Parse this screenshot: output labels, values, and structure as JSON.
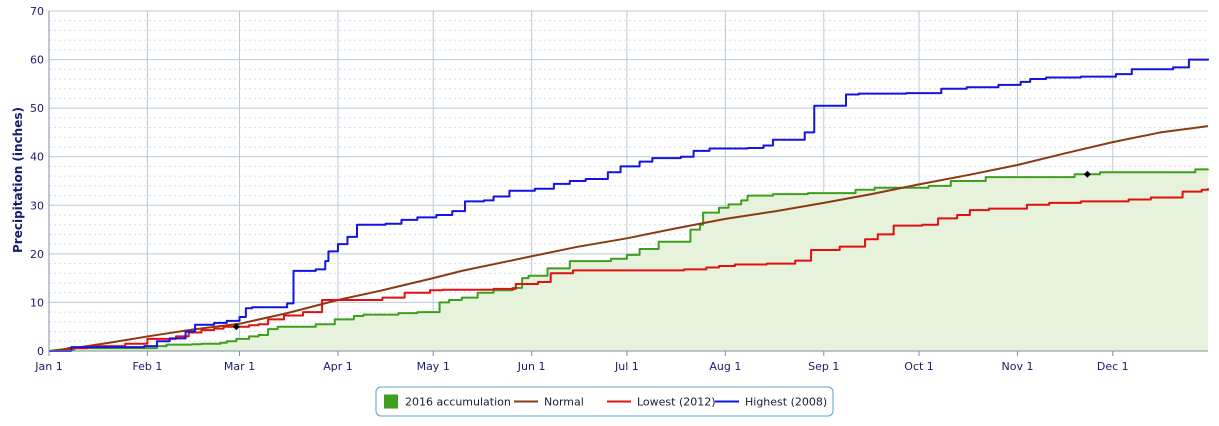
{
  "chart_data": {
    "type": "line",
    "title": "",
    "xlabel": "",
    "ylabel": "Precipitation (inches)",
    "ylim": [
      0,
      70
    ],
    "yticks": [
      0,
      10,
      20,
      30,
      40,
      50,
      60,
      70
    ],
    "xlim_day": [
      0,
      365
    ],
    "month_ticks": [
      {
        "label": "Jan 1",
        "day": 0
      },
      {
        "label": "Feb 1",
        "day": 31
      },
      {
        "label": "Mar 1",
        "day": 60
      },
      {
        "label": "Apr 1",
        "day": 91
      },
      {
        "label": "May 1",
        "day": 121
      },
      {
        "label": "Jun 1",
        "day": 152
      },
      {
        "label": "Jul 1",
        "day": 182
      },
      {
        "label": "Aug 1",
        "day": 213
      },
      {
        "label": "Sep 1",
        "day": 244
      },
      {
        "label": "Oct 1",
        "day": 274
      },
      {
        "label": "Nov 1",
        "day": 305
      },
      {
        "label": "Dec 1",
        "day": 335
      }
    ],
    "grid": true,
    "legend_position": "bottom-center",
    "series": [
      {
        "name": "2016 accumulation",
        "style": "filled-step",
        "color": "#3e9e1e",
        "fill": "#e6f2dc",
        "points": [
          [
            0,
            0
          ],
          [
            5,
            0.3
          ],
          [
            8,
            0.6
          ],
          [
            34,
            1.0
          ],
          [
            37,
            1.3
          ],
          [
            45,
            1.4
          ],
          [
            48,
            1.5
          ],
          [
            54,
            1.7
          ],
          [
            56,
            2.0
          ],
          [
            59,
            2.5
          ],
          [
            63,
            3.0
          ],
          [
            66,
            3.3
          ],
          [
            69,
            4.5
          ],
          [
            72,
            5.0
          ],
          [
            84,
            5.5
          ],
          [
            90,
            6.5
          ],
          [
            96,
            7.2
          ],
          [
            99,
            7.5
          ],
          [
            110,
            7.8
          ],
          [
            116,
            8.0
          ],
          [
            120,
            8.0
          ],
          [
            123,
            10.0
          ],
          [
            126,
            10.5
          ],
          [
            130,
            11.0
          ],
          [
            135,
            12.0
          ],
          [
            140,
            12.5
          ],
          [
            146,
            13.0
          ],
          [
            149,
            15.0
          ],
          [
            151,
            15.5
          ],
          [
            157,
            17.0
          ],
          [
            164,
            18.5
          ],
          [
            177,
            19.0
          ],
          [
            182,
            19.8
          ],
          [
            186,
            21.0
          ],
          [
            192,
            22.5
          ],
          [
            202,
            25.0
          ],
          [
            205,
            26.0
          ],
          [
            206,
            28.5
          ],
          [
            211,
            29.5
          ],
          [
            214,
            30.2
          ],
          [
            218,
            31.0
          ],
          [
            220,
            32.0
          ],
          [
            228,
            32.3
          ],
          [
            239,
            32.5
          ],
          [
            254,
            33.2
          ],
          [
            260,
            33.6
          ],
          [
            277,
            34.0
          ],
          [
            284,
            35.0
          ],
          [
            295,
            35.8
          ],
          [
            323,
            36.4
          ],
          [
            331,
            36.8
          ],
          [
            361,
            37.4
          ],
          [
            365,
            37.5
          ]
        ],
        "markers": [
          [
            327,
            36.4
          ]
        ]
      },
      {
        "name": "Normal",
        "style": "line",
        "color": "#8b3a12",
        "points": [
          [
            0,
            0
          ],
          [
            10,
            0.8
          ],
          [
            20,
            1.8
          ],
          [
            31,
            3.0
          ],
          [
            45,
            4.4
          ],
          [
            60,
            5.6
          ],
          [
            75,
            7.8
          ],
          [
            91,
            10.5
          ],
          [
            105,
            12.5
          ],
          [
            121,
            15.0
          ],
          [
            130,
            16.5
          ],
          [
            152,
            19.5
          ],
          [
            166,
            21.4
          ],
          [
            182,
            23.2
          ],
          [
            197,
            25.2
          ],
          [
            213,
            27.2
          ],
          [
            229,
            28.8
          ],
          [
            244,
            30.5
          ],
          [
            259,
            32.3
          ],
          [
            274,
            34.3
          ],
          [
            290,
            36.3
          ],
          [
            305,
            38.3
          ],
          [
            320,
            40.7
          ],
          [
            335,
            43.0
          ],
          [
            350,
            45.0
          ],
          [
            365,
            46.3
          ]
        ]
      },
      {
        "name": "Lowest (2012)",
        "style": "step",
        "color": "#e01010",
        "points": [
          [
            0,
            0
          ],
          [
            6,
            0.6
          ],
          [
            12,
            1.0
          ],
          [
            24,
            1.5
          ],
          [
            31,
            2.5
          ],
          [
            40,
            3.0
          ],
          [
            44,
            3.8
          ],
          [
            48,
            4.3
          ],
          [
            52,
            4.6
          ],
          [
            55,
            5.0
          ],
          [
            63,
            5.3
          ],
          [
            66,
            5.5
          ],
          [
            69,
            6.5
          ],
          [
            74,
            7.3
          ],
          [
            80,
            8.0
          ],
          [
            86,
            10.5
          ],
          [
            100,
            10.5
          ],
          [
            105,
            11.0
          ],
          [
            112,
            12.0
          ],
          [
            120,
            12.5
          ],
          [
            124,
            12.6
          ],
          [
            140,
            12.8
          ],
          [
            147,
            13.8
          ],
          [
            154,
            14.2
          ],
          [
            158,
            16.0
          ],
          [
            165,
            16.6
          ],
          [
            200,
            16.8
          ],
          [
            207,
            17.2
          ],
          [
            211,
            17.5
          ],
          [
            216,
            17.8
          ],
          [
            226,
            18.0
          ],
          [
            235,
            18.6
          ],
          [
            240,
            20.8
          ],
          [
            249,
            21.5
          ],
          [
            257,
            23.0
          ],
          [
            261,
            24.0
          ],
          [
            266,
            25.8
          ],
          [
            275,
            26.0
          ],
          [
            280,
            27.3
          ],
          [
            286,
            28.0
          ],
          [
            290,
            29.0
          ],
          [
            296,
            29.3
          ],
          [
            308,
            30.1
          ],
          [
            315,
            30.5
          ],
          [
            325,
            30.8
          ],
          [
            340,
            31.2
          ],
          [
            347,
            31.6
          ],
          [
            357,
            32.8
          ],
          [
            363,
            33.2
          ],
          [
            365,
            33.5
          ]
        ],
        "markers": [
          [
            59,
            5.0
          ]
        ]
      },
      {
        "name": "Highest (2008)",
        "style": "step",
        "color": "#1414e0",
        "points": [
          [
            0,
            0
          ],
          [
            7,
            0.8
          ],
          [
            19,
            0.8
          ],
          [
            29,
            0.8
          ],
          [
            30,
            1.0
          ],
          [
            34,
            2.0
          ],
          [
            38,
            2.6
          ],
          [
            43,
            4.0
          ],
          [
            46,
            5.4
          ],
          [
            52,
            5.8
          ],
          [
            56,
            6.2
          ],
          [
            60,
            7.0
          ],
          [
            62,
            8.8
          ],
          [
            64,
            9.0
          ],
          [
            75,
            9.8
          ],
          [
            77,
            16.5
          ],
          [
            84,
            16.8
          ],
          [
            87,
            18.5
          ],
          [
            88,
            20.5
          ],
          [
            91,
            22.0
          ],
          [
            94,
            23.5
          ],
          [
            97,
            26.0
          ],
          [
            106,
            26.2
          ],
          [
            111,
            27.0
          ],
          [
            116,
            27.5
          ],
          [
            122,
            28.0
          ],
          [
            127,
            28.8
          ],
          [
            131,
            30.8
          ],
          [
            137,
            31.0
          ],
          [
            140,
            31.8
          ],
          [
            145,
            33.0
          ],
          [
            153,
            33.4
          ],
          [
            159,
            34.4
          ],
          [
            164,
            35.0
          ],
          [
            169,
            35.4
          ],
          [
            176,
            36.8
          ],
          [
            180,
            38.0
          ],
          [
            186,
            39.0
          ],
          [
            190,
            39.7
          ],
          [
            199,
            40.0
          ],
          [
            203,
            41.2
          ],
          [
            208,
            41.7
          ],
          [
            220,
            41.8
          ],
          [
            225,
            42.3
          ],
          [
            228,
            43.5
          ],
          [
            238,
            45.0
          ],
          [
            241,
            50.5
          ],
          [
            251,
            52.8
          ],
          [
            255,
            53.0
          ],
          [
            270,
            53.1
          ],
          [
            281,
            54.0
          ],
          [
            289,
            54.3
          ],
          [
            299,
            54.8
          ],
          [
            306,
            55.4
          ],
          [
            309,
            56.0
          ],
          [
            314,
            56.3
          ],
          [
            325,
            56.5
          ],
          [
            336,
            57.0
          ],
          [
            341,
            58.0
          ],
          [
            354,
            58.4
          ],
          [
            359,
            60.0
          ],
          [
            365,
            60.2
          ]
        ]
      }
    ]
  }
}
